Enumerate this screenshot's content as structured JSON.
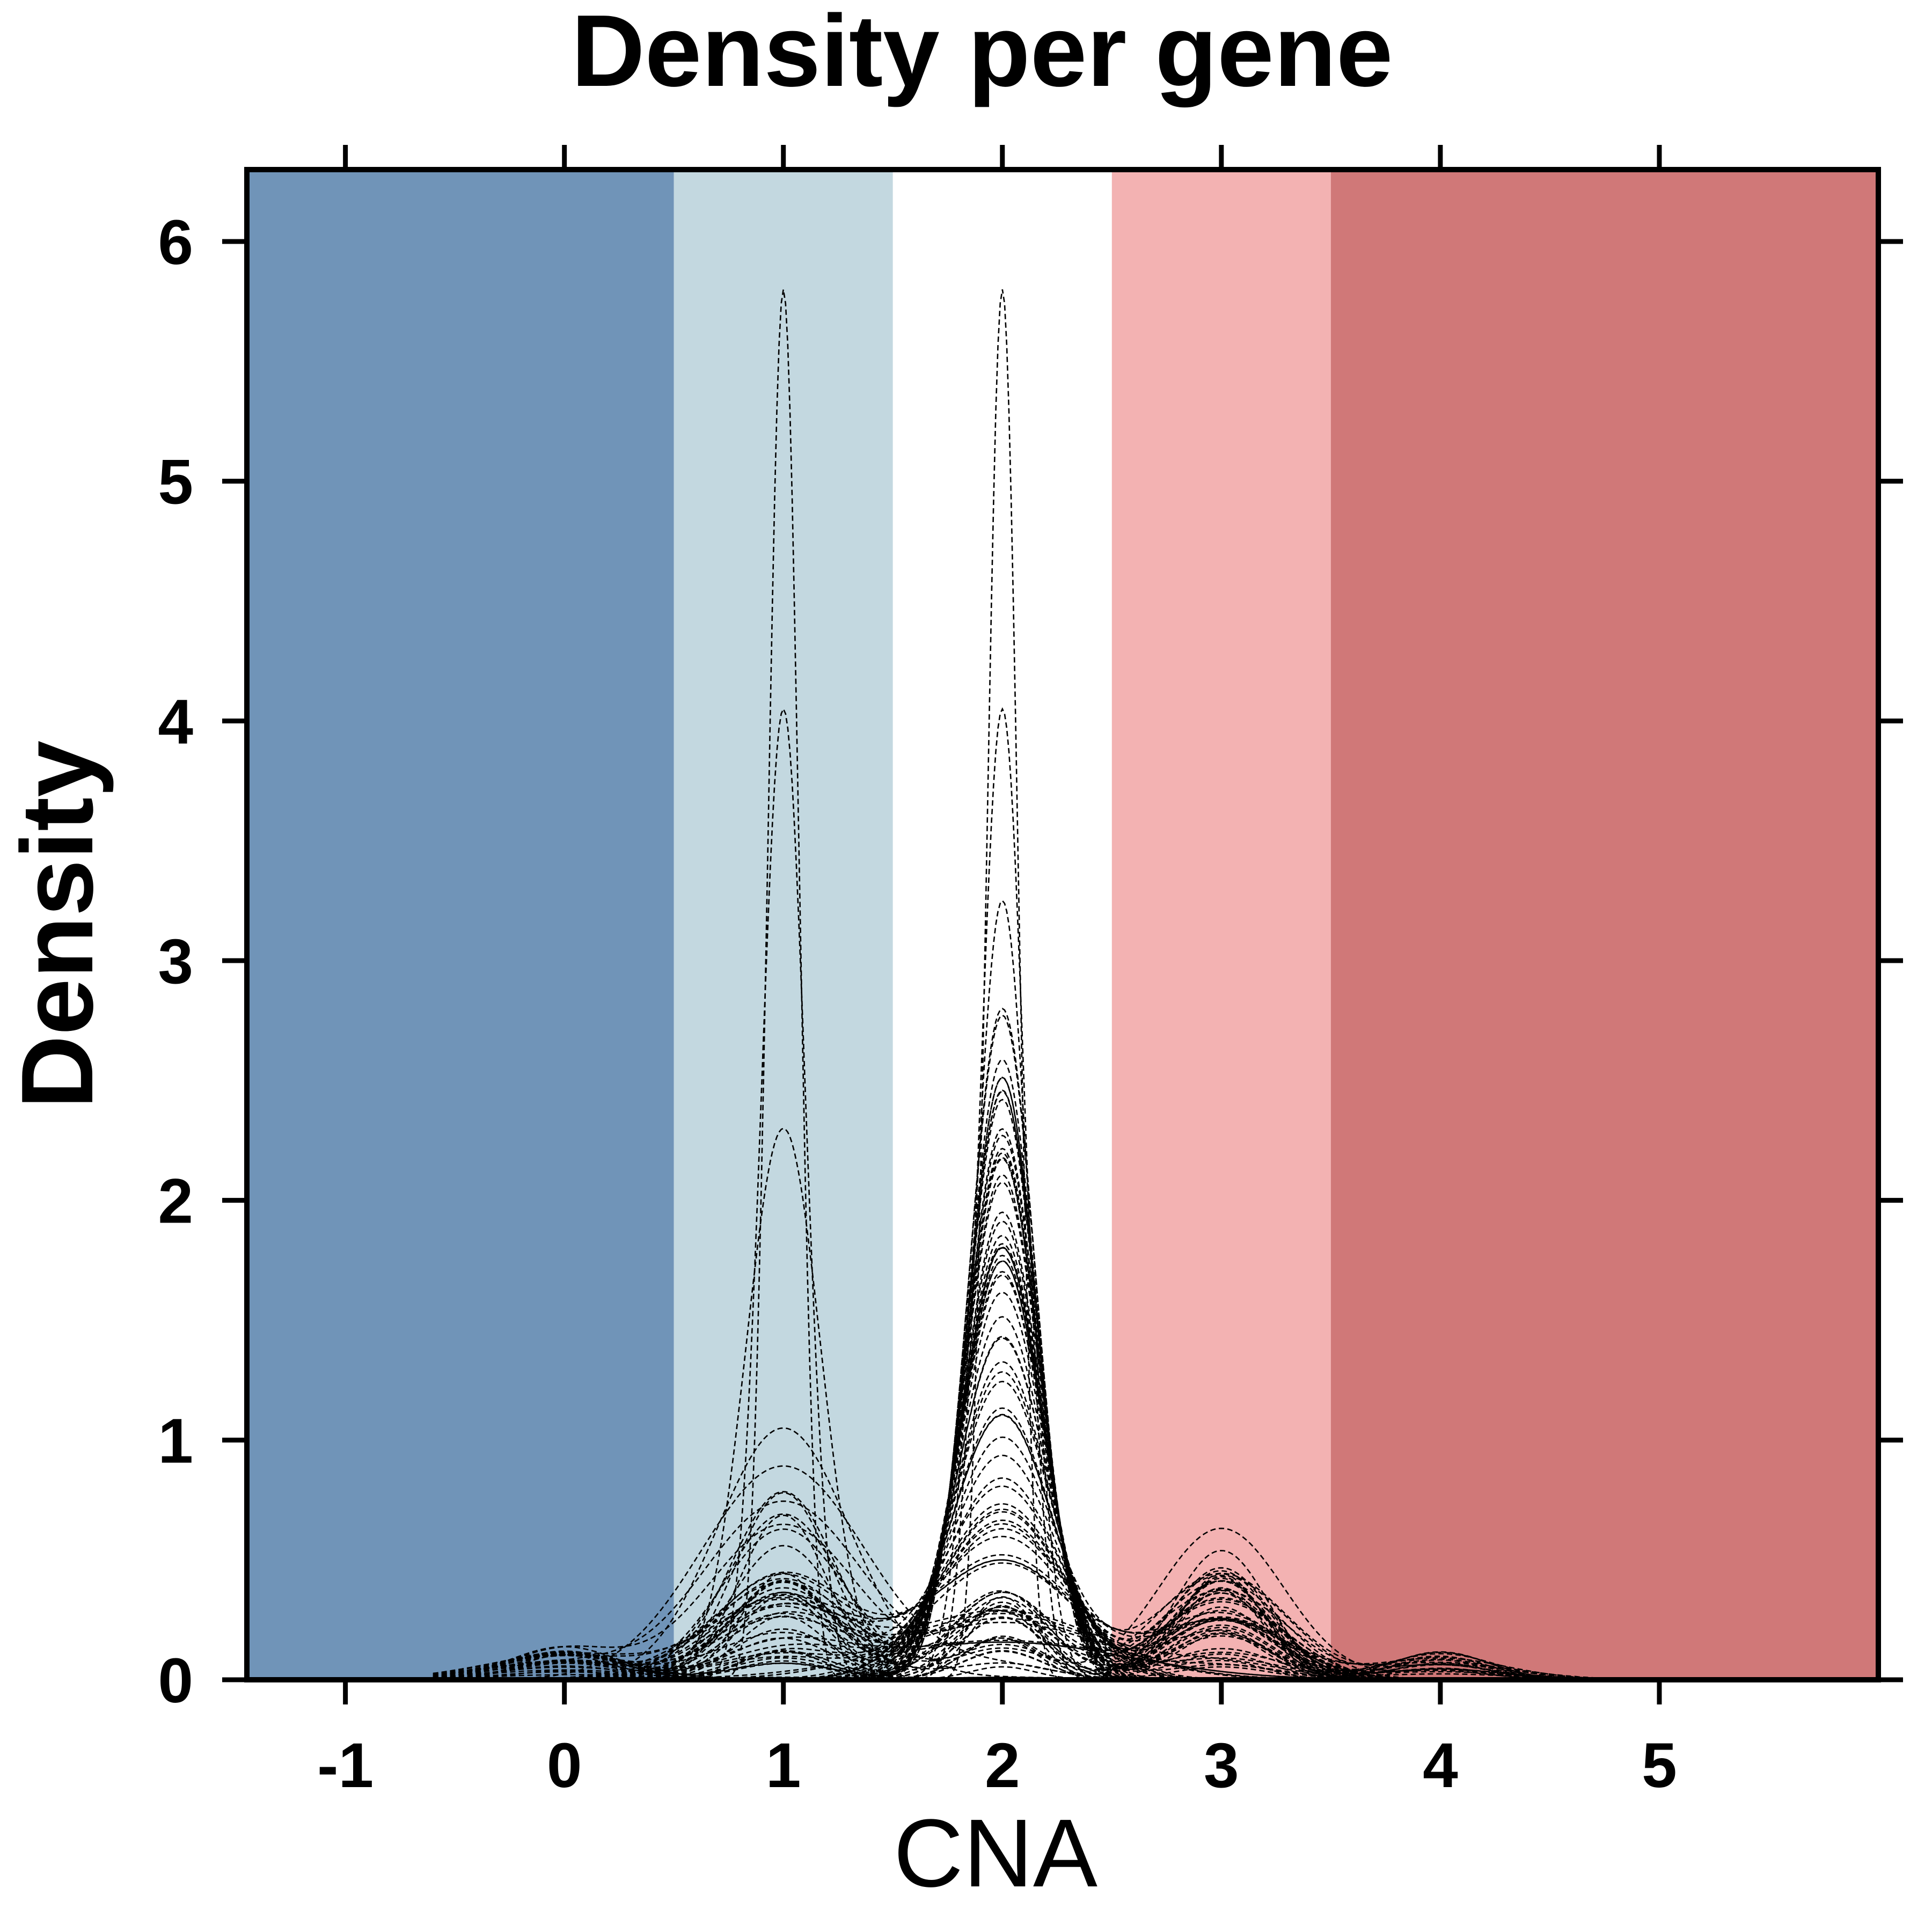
{
  "chart_data": {
    "type": "line",
    "title": "Density per gene",
    "xlabel": "CNA",
    "ylabel": "Density",
    "xlim": [
      -1.45,
      6.0
    ],
    "ylim": [
      0,
      6.3
    ],
    "x_ticks": [
      -1,
      0,
      1,
      2,
      3,
      4,
      5
    ],
    "y_ticks": [
      0,
      1,
      2,
      3,
      4,
      5,
      6
    ],
    "grid": false,
    "legend": "none",
    "line_style": "dashed",
    "background_bands": [
      {
        "from": -1.45,
        "to": 0.5,
        "color": "#7094B8"
      },
      {
        "from": 0.5,
        "to": 1.5,
        "color": "#C3D8E0"
      },
      {
        "from": 1.5,
        "to": 2.5,
        "color": "#FFFFFF"
      },
      {
        "from": 2.5,
        "to": 3.5,
        "color": "#F3B2B2"
      },
      {
        "from": 3.5,
        "to": 6.0,
        "color": "#D07878"
      }
    ],
    "series_summary": {
      "curve_count": 90,
      "peak_locations": [
        0,
        1,
        2,
        3,
        4
      ],
      "max_density_at_1": 5.8,
      "max_density_at_2": 5.8,
      "max_density_at_3": 0.7,
      "max_density_at_4": 0.13,
      "max_density_at_0": 0.14
    }
  }
}
